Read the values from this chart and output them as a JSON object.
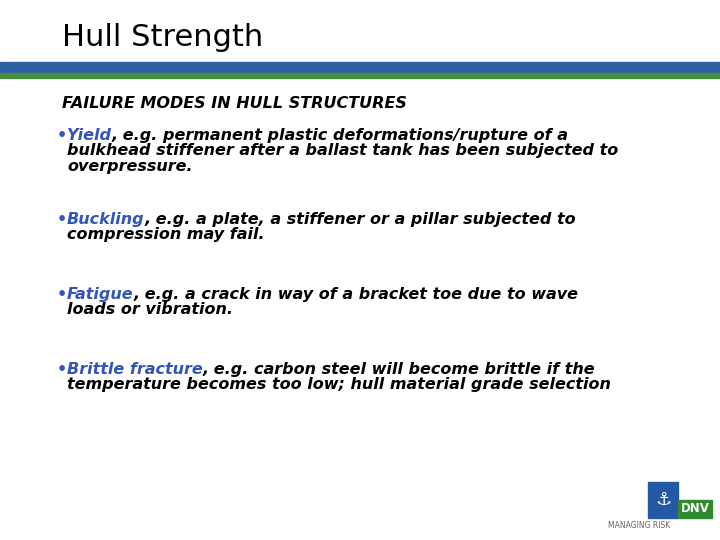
{
  "title": "Hull Strength",
  "bg_color": "#FFFFFF",
  "header_line_blue": "#2E5FA3",
  "header_line_green": "#4A8C3F",
  "subtitle": "FAILURE MODES IN HULL STRUCTURES",
  "body_color": "#000000",
  "blue_color": "#3355BB",
  "items": [
    {
      "keyword": "Yield",
      "line1_rest": ", e.g. permanent plastic deformations/rupture of a",
      "line2": "bulkhead stiffener after a ballast tank has been subjected to",
      "line3": "overpressure."
    },
    {
      "keyword": "Buckling",
      "line1_rest": ", e.g. a plate, a stiffener or a pillar subjected to",
      "line2": "compression may fail.",
      "line3": ""
    },
    {
      "keyword": "Fatigue",
      "line1_rest": ", e.g. a crack in way of a bracket toe due to wave",
      "line2": "loads or vibration.",
      "line3": ""
    },
    {
      "keyword": "Brittle fracture",
      "line1_rest": ", e.g. carbon steel will become brittle if the",
      "line2": "temperature becomes too low; hull material grade selection",
      "line3": ""
    }
  ]
}
